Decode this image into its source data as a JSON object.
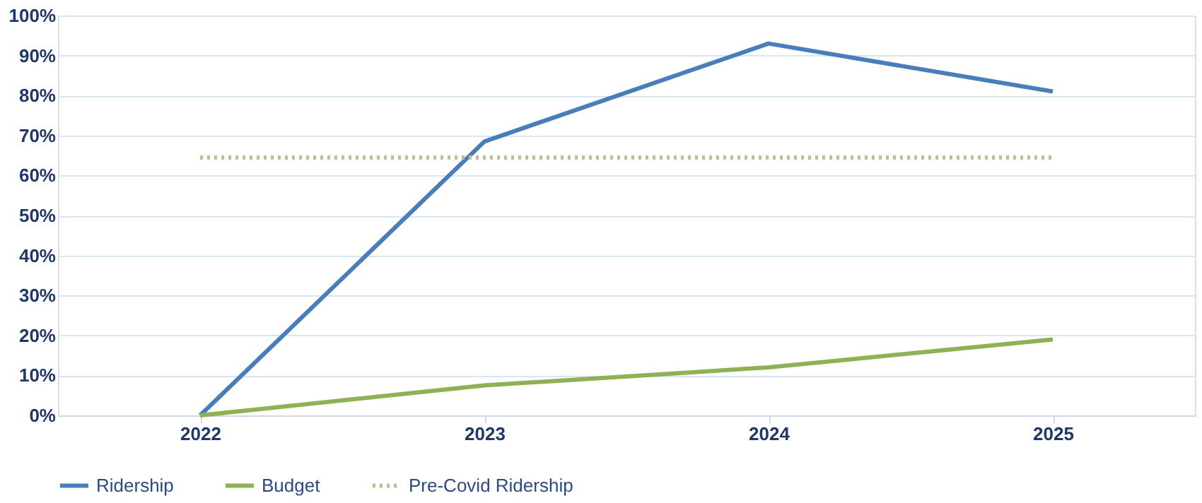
{
  "chart_data": {
    "type": "line",
    "categories": [
      "2022",
      "2023",
      "2024",
      "2025"
    ],
    "series": [
      {
        "name": "Ridership",
        "color": "#4a7ebb",
        "values": [
          0,
          68.5,
          93,
          81
        ],
        "line_style": "solid"
      },
      {
        "name": "Budget",
        "color": "#8db255",
        "values": [
          0,
          7.5,
          12,
          19
        ],
        "line_style": "solid"
      },
      {
        "name": "Pre-Covid Ridership",
        "color": "#c4bc96",
        "values": [
          64.5,
          64.5,
          64.5,
          64.5
        ],
        "line_style": "dotted"
      }
    ],
    "ylim": [
      0,
      100
    ],
    "yticks": [
      {
        "value": 0,
        "label": "0%"
      },
      {
        "value": 10,
        "label": "10%"
      },
      {
        "value": 20,
        "label": "20%"
      },
      {
        "value": 30,
        "label": "30%"
      },
      {
        "value": 40,
        "label": "40%"
      },
      {
        "value": 50,
        "label": "50%"
      },
      {
        "value": 60,
        "label": "60%"
      },
      {
        "value": 70,
        "label": "70%"
      },
      {
        "value": 80,
        "label": "80%"
      },
      {
        "value": 90,
        "label": "90%"
      },
      {
        "value": 100,
        "label": "100%"
      }
    ],
    "grid": "y",
    "legend": "bottom",
    "marker": "none"
  }
}
